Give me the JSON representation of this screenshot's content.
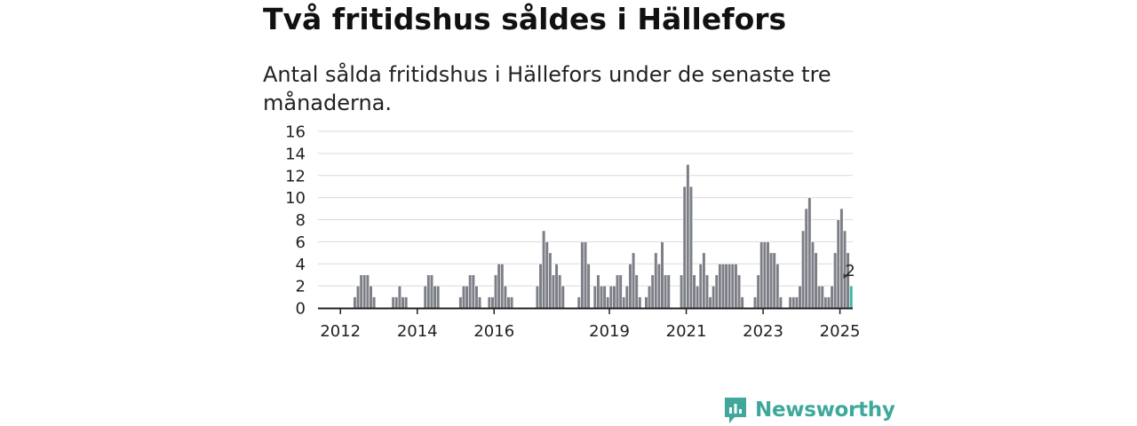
{
  "header": {
    "title": "Två fritidshus såldes i Hällefors",
    "subtitle": "Antal sålda fritidshus i Hällefors under de senaste tre månaderna."
  },
  "brand": {
    "name": "Newsworthy",
    "icon": "newsworthy-logo-icon",
    "color": "#3fa89a"
  },
  "colors": {
    "bar": "#7d7f87",
    "highlight": "#3fb6a6",
    "grid": "#d9d9d9",
    "axis": "#222222"
  },
  "chart_data": {
    "type": "bar",
    "title": "Två fritidshus såldes i Hällefors",
    "subtitle": "Antal sålda fritidshus i Hällefors under de senaste tre månaderna.",
    "xlabel": "",
    "ylabel": "",
    "ylim": [
      0,
      16
    ],
    "yticks": [
      0,
      2,
      4,
      6,
      8,
      10,
      12,
      14,
      16
    ],
    "grid": true,
    "period_start": "2011-06",
    "xticks": [
      {
        "label": "2012",
        "index": 7
      },
      {
        "label": "2014",
        "index": 31
      },
      {
        "label": "2016",
        "index": 55
      },
      {
        "label": "2019",
        "index": 91
      },
      {
        "label": "2021",
        "index": 115
      },
      {
        "label": "2023",
        "index": 139
      },
      {
        "label": "2025",
        "index": 163
      }
    ],
    "values": [
      0,
      0,
      0,
      0,
      0,
      0,
      0,
      0,
      0,
      0,
      0,
      1,
      2,
      3,
      3,
      3,
      2,
      1,
      0,
      0,
      0,
      0,
      0,
      1,
      1,
      2,
      1,
      1,
      0,
      0,
      0,
      0,
      0,
      2,
      3,
      3,
      2,
      2,
      0,
      0,
      0,
      0,
      0,
      0,
      1,
      2,
      2,
      3,
      3,
      2,
      1,
      0,
      0,
      1,
      1,
      3,
      4,
      4,
      2,
      1,
      1,
      0,
      0,
      0,
      0,
      0,
      0,
      0,
      2,
      4,
      7,
      6,
      5,
      3,
      4,
      3,
      2,
      0,
      0,
      0,
      0,
      1,
      6,
      6,
      4,
      0,
      2,
      3,
      2,
      2,
      1,
      2,
      2,
      3,
      3,
      1,
      2,
      4,
      5,
      3,
      1,
      0,
      1,
      2,
      3,
      5,
      4,
      6,
      3,
      3,
      0,
      0,
      0,
      3,
      11,
      13,
      11,
      3,
      2,
      4,
      5,
      3,
      1,
      2,
      3,
      4,
      4,
      4,
      4,
      4,
      4,
      3,
      1,
      0,
      0,
      0,
      1,
      3,
      6,
      6,
      6,
      5,
      5,
      4,
      1,
      0,
      0,
      1,
      1,
      1,
      2,
      7,
      9,
      10,
      6,
      5,
      2,
      2,
      1,
      1,
      2,
      5,
      8,
      9,
      7,
      5,
      2
    ],
    "highlight_last": true,
    "last_value_label": "2"
  }
}
